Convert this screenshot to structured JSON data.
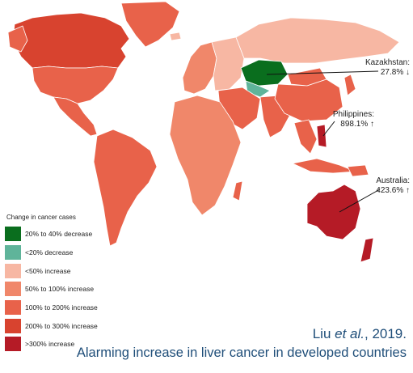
{
  "legend": {
    "title": "Change in cancer cases",
    "items": [
      {
        "label": "20% to 40% decrease",
        "color": "#0a6e1e"
      },
      {
        "label": "<20% decrease",
        "color": "#5fb49a"
      },
      {
        "label": "<50% increase",
        "color": "#f7b7a3"
      },
      {
        "label": "50% to 100% increase",
        "color": "#f0876a"
      },
      {
        "label": "100% to 200% increase",
        "color": "#e8624a"
      },
      {
        "label": "200% to 300% increase",
        "color": "#d8432f"
      },
      {
        "label": ">300% increase",
        "color": "#b51b26"
      }
    ]
  },
  "callouts": [
    {
      "country": "Kazakhstan:",
      "value": "27.8% ↓"
    },
    {
      "country": "Philippines:",
      "value": "898.1% ↑"
    },
    {
      "country": "Australia:",
      "value": "423.6% ↑"
    }
  ],
  "citation": {
    "author": "Liu ",
    "etal": "et al.",
    "year": ", 2019."
  },
  "subtitle": "Alarming increase in liver cancer in developed countries",
  "regions": [
    {
      "name": "Canada",
      "category": 5
    },
    {
      "name": "United States",
      "category": 5
    },
    {
      "name": "Mexico",
      "category": 4
    },
    {
      "name": "Greenland",
      "category": 4
    },
    {
      "name": "South America",
      "category": 4
    },
    {
      "name": "Western Europe",
      "category": 3
    },
    {
      "name": "Eastern Europe",
      "category": 2
    },
    {
      "name": "Russia",
      "category": 2
    },
    {
      "name": "Kazakhstan",
      "category": 0
    },
    {
      "name": "Uzbekistan",
      "category": 1
    },
    {
      "name": "Africa",
      "category": 3
    },
    {
      "name": "Middle East",
      "category": 4
    },
    {
      "name": "India",
      "category": 4
    },
    {
      "name": "China",
      "category": 4
    },
    {
      "name": "Southeast Asia",
      "category": 4
    },
    {
      "name": "Japan",
      "category": 4
    },
    {
      "name": "Philippines",
      "category": 6
    },
    {
      "name": "Australia",
      "category": 6
    },
    {
      "name": "New Zealand",
      "category": 6
    }
  ]
}
